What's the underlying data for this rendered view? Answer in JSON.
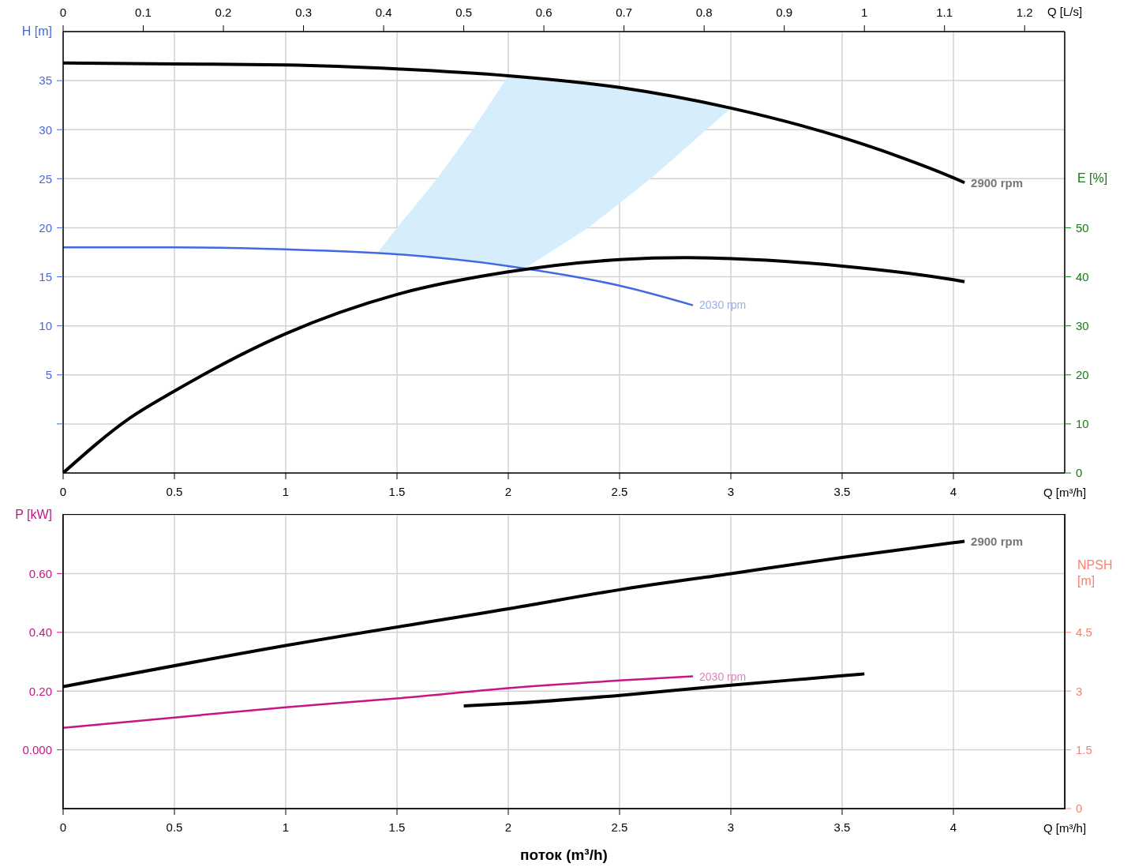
{
  "chart_data": [
    {
      "type": "line",
      "xlabel": "Q [m³/h]",
      "x2label": "Q [L/s]",
      "ylabel": "H [m]",
      "y2label": "E [%]",
      "xlim": [
        0,
        4.5
      ],
      "xticks": [
        0,
        0.5,
        1,
        1.5,
        2,
        2.5,
        3,
        3.5,
        4
      ],
      "x2lim": [
        0,
        1.25
      ],
      "x2ticks": [
        0,
        0.1,
        0.2,
        0.3,
        0.4,
        0.5,
        0.6,
        0.7,
        0.8,
        0.9,
        1,
        1.1,
        1.2
      ],
      "ylim": [
        -5,
        40
      ],
      "yticks": [
        {
          "value": 0,
          "label": null
        },
        5,
        10,
        15,
        20,
        25,
        30,
        35
      ],
      "y2lim": [
        0,
        90
      ],
      "y2ticks": [
        0,
        10,
        20,
        30,
        40,
        50
      ],
      "grid": true,
      "series": [
        {
          "name": "2900 rpm",
          "color": "#000000",
          "x": [
            0,
            0.5,
            1,
            1.5,
            2,
            2.5,
            3,
            3.5,
            3.75,
            4,
            4.05
          ],
          "values": [
            36.8,
            36.7,
            36.6,
            36.2,
            35.5,
            34.3,
            32.2,
            29.2,
            27.3,
            25.1,
            24.6
          ]
        },
        {
          "name": "2030 rpm",
          "color": "#4169e1",
          "x": [
            0,
            0.5,
            1,
            1.5,
            2,
            2.25,
            2.5,
            2.83
          ],
          "values": [
            18.0,
            18.0,
            17.8,
            17.3,
            16.1,
            15.2,
            14.1,
            12.1
          ]
        },
        {
          "color": "#000000",
          "axis": "y2",
          "x": [
            0,
            0.3,
            0.5,
            1,
            1.5,
            2,
            2.5,
            2.8,
            3,
            3.5,
            4,
            4.05
          ],
          "values": [
            0,
            11.2,
            16.7,
            28.4,
            36.4,
            41.0,
            43.5,
            43.9,
            43.7,
            42.2,
            39.4,
            39.0
          ]
        },
        {
          "type": "area",
          "color": "#d6eefb",
          "x": [
            1.41,
            1.5,
            1.68,
            1.84,
            2.0,
            2.07,
            2.36,
            2.5,
            2.64,
            2.84,
            3.0
          ],
          "values": [
            null,
            null,
            null,
            null,
            null,
            null,
            null,
            null,
            null,
            null,
            null
          ],
          "upper": [
            17.4,
            20,
            25,
            30,
            35.5,
            35.4,
            34.7,
            34.3,
            33.8,
            32.9,
            32.2
          ],
          "lower": [
            17.4,
            17.3,
            16.9,
            16.5,
            16.1,
            15.8,
            20,
            22.5,
            25,
            29,
            32.2
          ]
        }
      ]
    },
    {
      "type": "line",
      "xlabel": "Q [m³/h]",
      "ylabel": "P [kW]",
      "y2label": "NPSH [m]",
      "annotations": [
        "поток (m³/h)"
      ],
      "xlim": [
        0,
        4.5
      ],
      "xticks": [
        0,
        0.5,
        1,
        1.5,
        2,
        2.5,
        3,
        3.5,
        4
      ],
      "ylim": [
        -0.2,
        0.8
      ],
      "yticks": [
        {
          "value": 0,
          "label": "0.000"
        },
        {
          "value": 0.2,
          "label": "0.20"
        },
        {
          "value": 0.4,
          "label": "0.40"
        },
        {
          "value": 0.6,
          "label": "0.60"
        }
      ],
      "y2lim": [
        0,
        7.5
      ],
      "y2ticks": [
        0,
        1.5,
        3,
        4.5
      ],
      "grid": true,
      "series": [
        {
          "name": "2900 rpm",
          "color": "#000000",
          "x": [
            0,
            1,
            2,
            2.5,
            3,
            3.5,
            4,
            4.05
          ],
          "values": [
            0.215,
            0.355,
            0.48,
            0.545,
            0.6,
            0.655,
            0.705,
            0.71
          ]
        },
        {
          "name": "2030 rpm",
          "color": "#c71585",
          "x": [
            0,
            0.5,
            1,
            1.5,
            2,
            2.83
          ],
          "values": [
            0.075,
            0.11,
            0.145,
            0.175,
            0.21,
            0.25
          ]
        },
        {
          "color": "#000000",
          "axis": "y2",
          "x": [
            1.8,
            2,
            2.5,
            3,
            3.5,
            3.6
          ],
          "values": [
            2.62,
            2.68,
            2.89,
            3.15,
            3.39,
            3.44
          ]
        }
      ]
    }
  ]
}
